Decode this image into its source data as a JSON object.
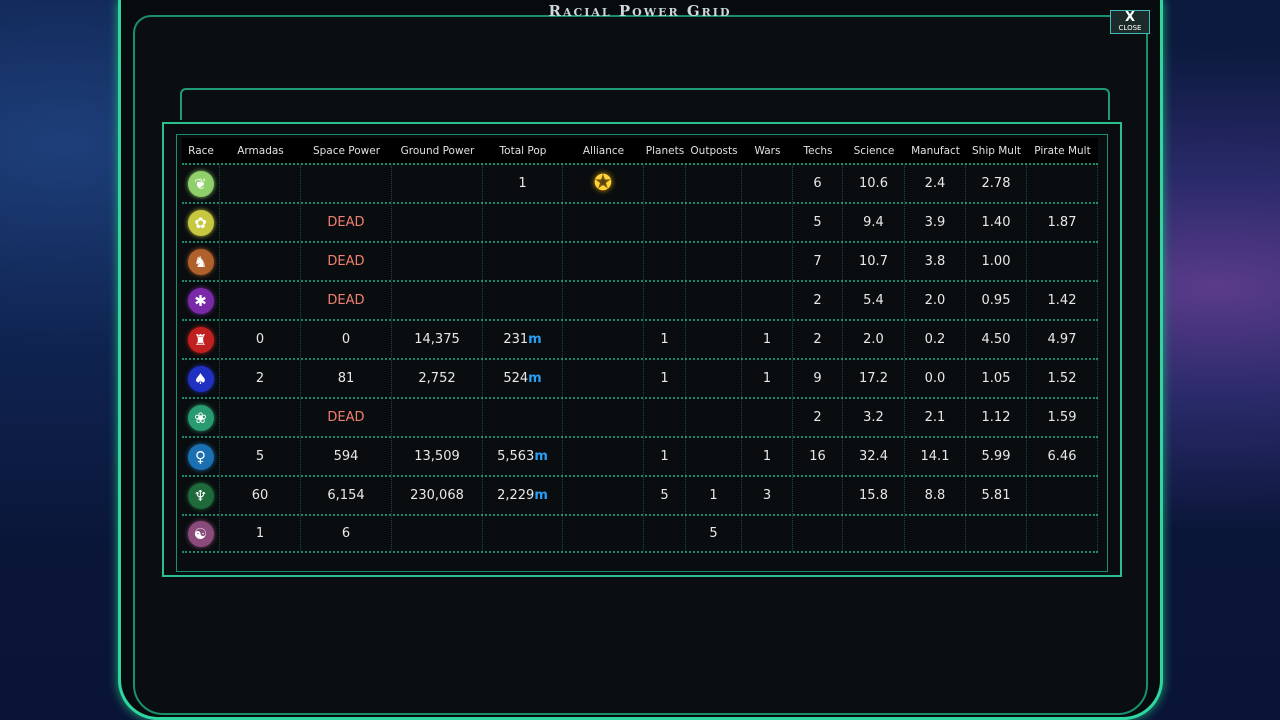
{
  "title": "Racial Power Grid",
  "close": {
    "icon": "X",
    "label": "CLOSE"
  },
  "columns": [
    "Race",
    "Armadas",
    "Space Power",
    "Ground Power",
    "Total Pop",
    "Alliance",
    "Planets",
    "Outposts",
    "Wars",
    "Techs",
    "Science",
    "Manufact",
    "Ship Mult",
    "Pirate Mult"
  ],
  "rows": [
    {
      "race_color": "#8fd06a",
      "glyph": "❦",
      "armadas": "",
      "space": "",
      "ground": "",
      "pop": "1",
      "pop_unit": "",
      "alliance_icon": "star-icon",
      "planets": "",
      "outposts": "",
      "wars": "",
      "techs": "6",
      "science": "10.6",
      "manufact": "2.4",
      "ship": "2.78",
      "pirate": ""
    },
    {
      "race_color": "#c8c840",
      "glyph": "✿",
      "armadas": "",
      "space": "DEAD",
      "ground": "",
      "pop": "",
      "pop_unit": "",
      "alliance_icon": "",
      "planets": "",
      "outposts": "",
      "wars": "",
      "techs": "5",
      "science": "9.4",
      "manufact": "3.9",
      "ship": "1.40",
      "pirate": "1.87"
    },
    {
      "race_color": "#b0602a",
      "glyph": "♞",
      "armadas": "",
      "space": "DEAD",
      "ground": "",
      "pop": "",
      "pop_unit": "",
      "alliance_icon": "",
      "planets": "",
      "outposts": "",
      "wars": "",
      "techs": "7",
      "science": "10.7",
      "manufact": "3.8",
      "ship": "1.00",
      "pirate": ""
    },
    {
      "race_color": "#7a2aa8",
      "glyph": "✱",
      "armadas": "",
      "space": "DEAD",
      "ground": "",
      "pop": "",
      "pop_unit": "",
      "alliance_icon": "",
      "planets": "",
      "outposts": "",
      "wars": "",
      "techs": "2",
      "science": "5.4",
      "manufact": "2.0",
      "ship": "0.95",
      "pirate": "1.42"
    },
    {
      "race_color": "#c02020",
      "glyph": "♜",
      "armadas": "0",
      "space": "0",
      "ground": "14,375",
      "pop": "231",
      "pop_unit": "m",
      "alliance_icon": "",
      "planets": "1",
      "outposts": "",
      "wars": "1",
      "techs": "2",
      "science": "2.0",
      "manufact": "0.2",
      "ship": "4.50",
      "pirate": "4.97"
    },
    {
      "race_color": "#2030c0",
      "glyph": "♠",
      "armadas": "2",
      "space": "81",
      "ground": "2,752",
      "pop": "524",
      "pop_unit": "m",
      "alliance_icon": "",
      "planets": "1",
      "outposts": "",
      "wars": "1",
      "techs": "9",
      "science": "17.2",
      "manufact": "0.0",
      "ship": "1.05",
      "pirate": "1.52"
    },
    {
      "race_color": "#2a9a70",
      "glyph": "❀",
      "armadas": "",
      "space": "DEAD",
      "ground": "",
      "pop": "",
      "pop_unit": "",
      "alliance_icon": "",
      "planets": "",
      "outposts": "",
      "wars": "",
      "techs": "2",
      "science": "3.2",
      "manufact": "2.1",
      "ship": "1.12",
      "pirate": "1.59"
    },
    {
      "race_color": "#1a70b0",
      "glyph": "♀",
      "armadas": "5",
      "space": "594",
      "ground": "13,509",
      "pop": "5,563",
      "pop_unit": "m",
      "alliance_icon": "",
      "planets": "1",
      "outposts": "",
      "wars": "1",
      "techs": "16",
      "science": "32.4",
      "manufact": "14.1",
      "ship": "5.99",
      "pirate": "6.46"
    },
    {
      "race_color": "#1f6a3a",
      "glyph": "♆",
      "armadas": "60",
      "space": "6,154",
      "ground": "230,068",
      "pop": "2,229",
      "pop_unit": "m",
      "alliance_icon": "",
      "planets": "5",
      "outposts": "1",
      "wars": "3",
      "techs": "",
      "science": "15.8",
      "manufact": "8.8",
      "ship": "5.81",
      "pirate": ""
    },
    {
      "race_color": "#8a4a7a",
      "glyph": "☯",
      "armadas": "1",
      "space": "6",
      "ground": "",
      "pop": "",
      "pop_unit": "",
      "alliance_icon": "",
      "planets": "",
      "outposts": "5",
      "wars": "",
      "techs": "",
      "science": "",
      "manufact": "",
      "ship": "",
      "pirate": ""
    }
  ]
}
